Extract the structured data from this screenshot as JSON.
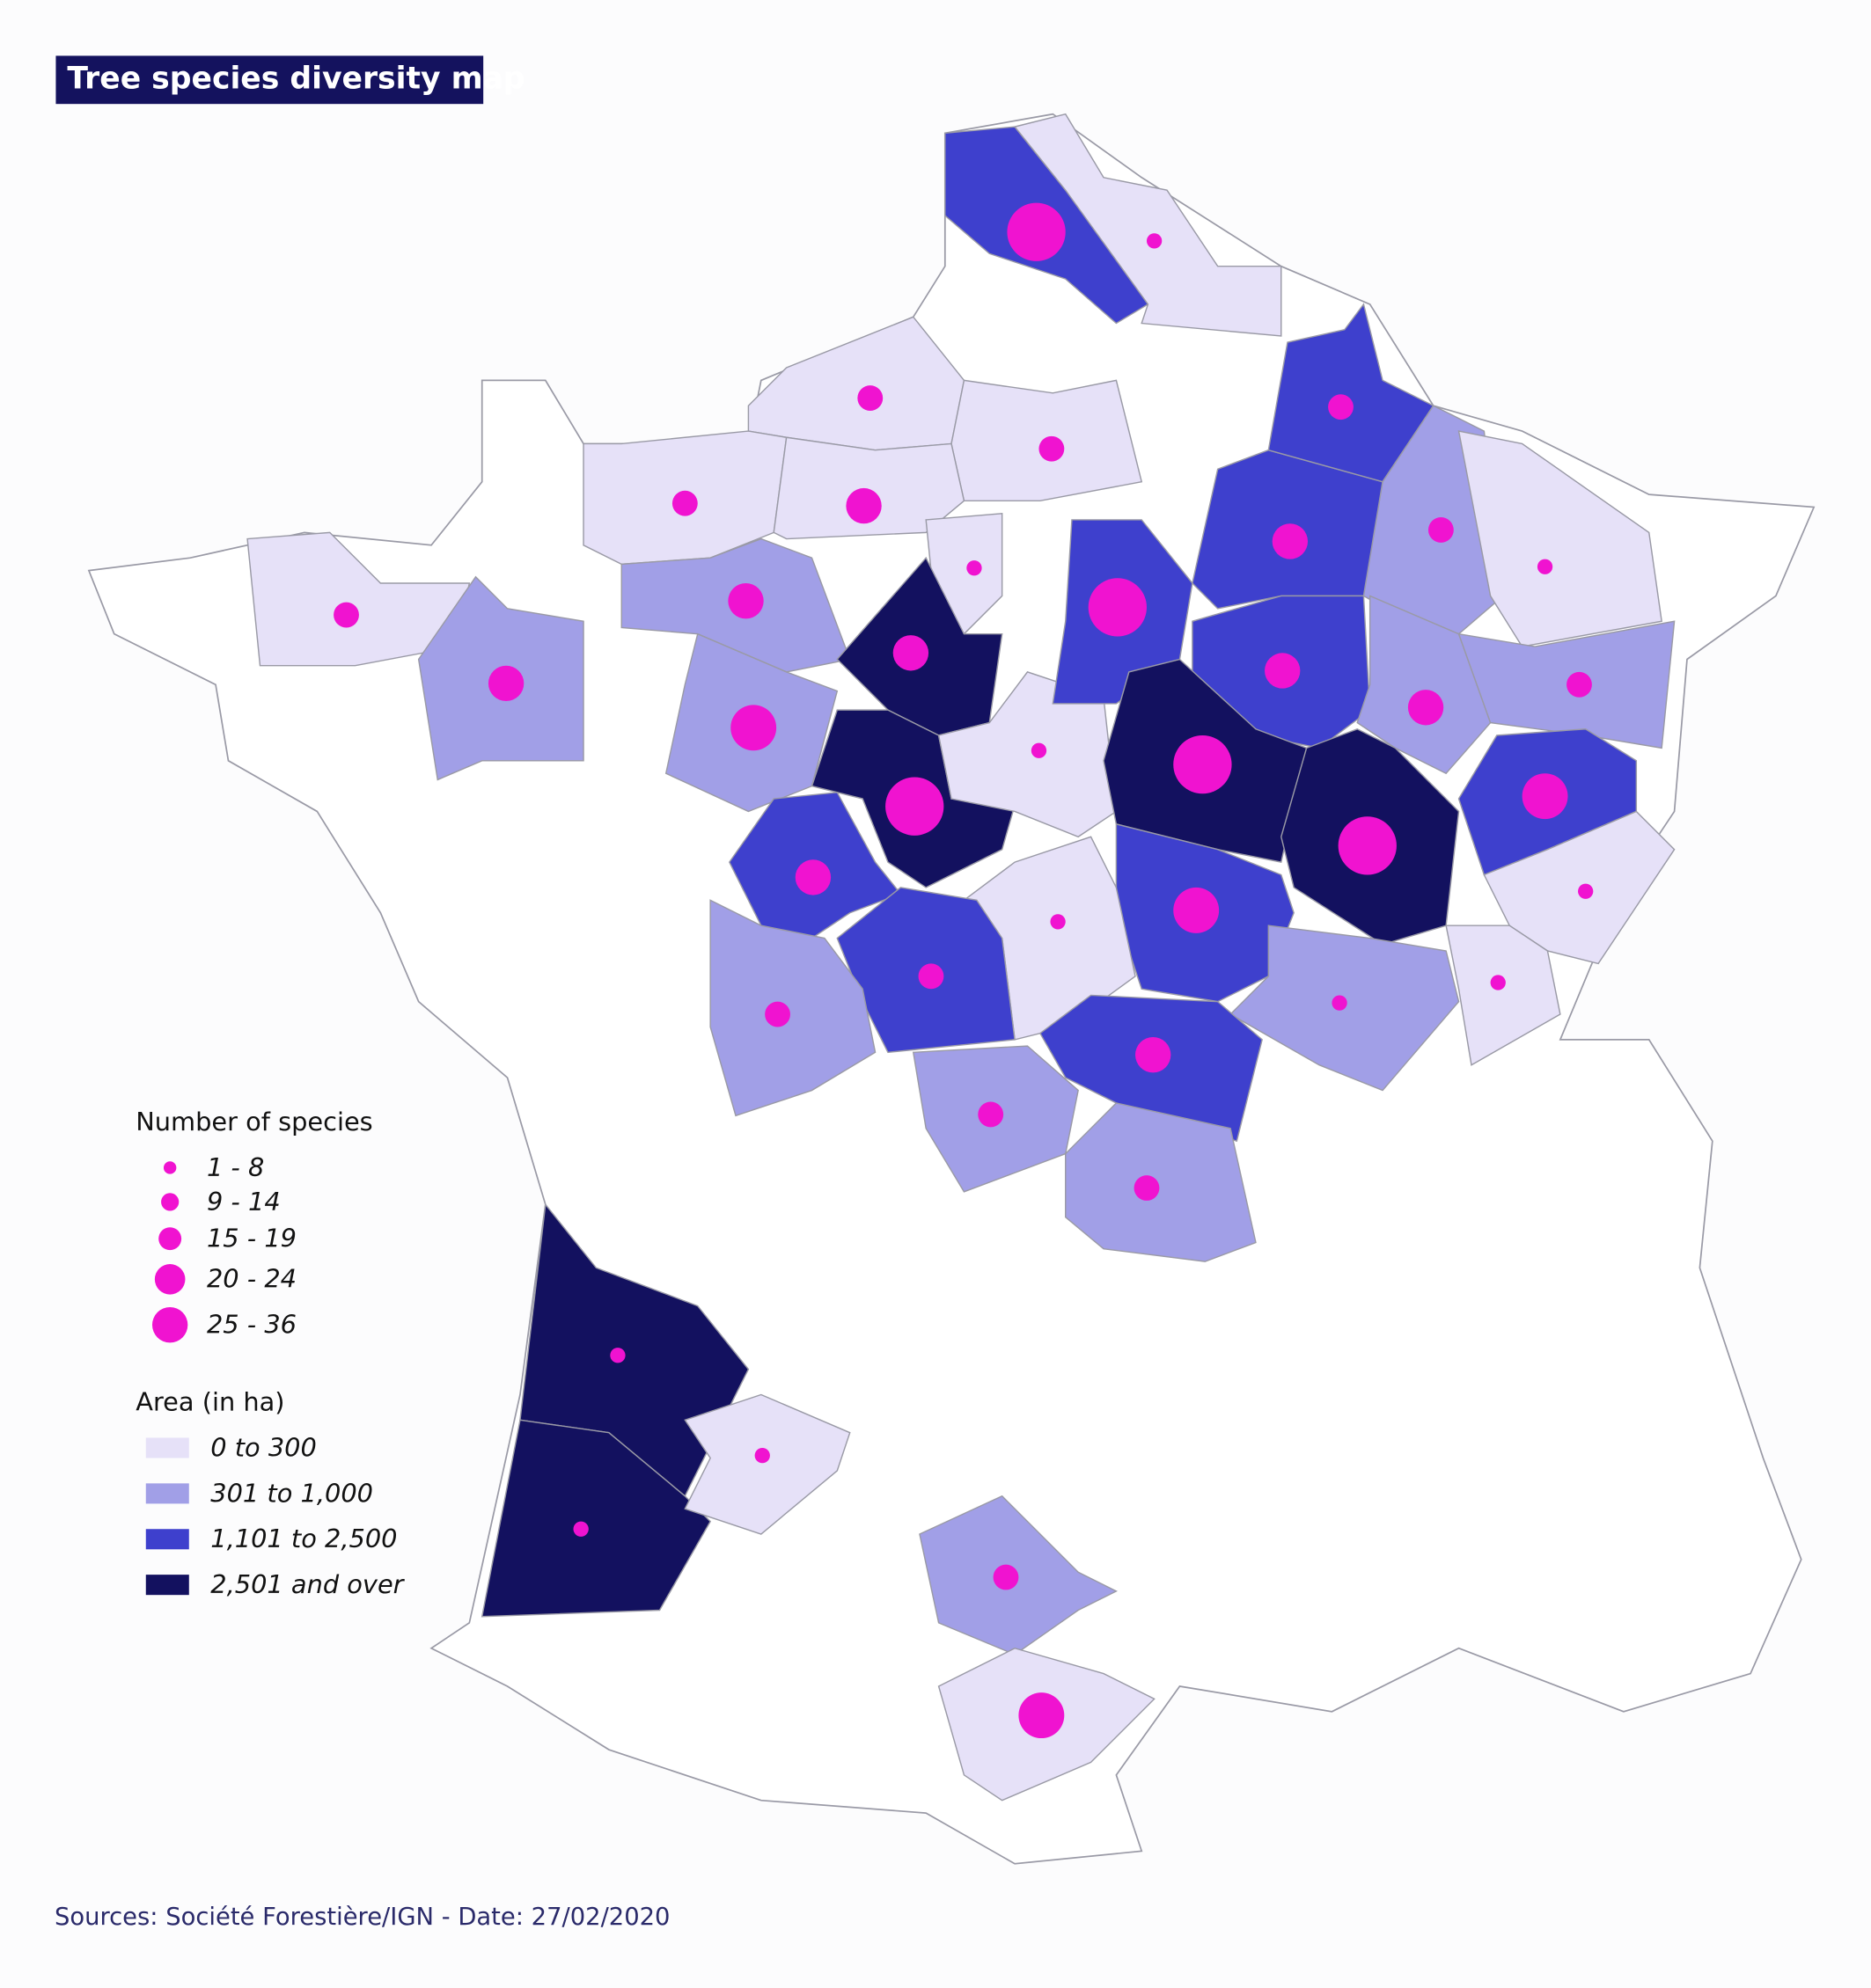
{
  "header": {
    "title": "Tree species diversity map"
  },
  "legend": {
    "species": {
      "title": "Number of species",
      "items": [
        "1 - 8",
        "9 - 14",
        "15 - 19",
        "20 - 24",
        "25 - 36"
      ]
    },
    "area": {
      "title": "Area (in ha)",
      "items": [
        "0 to 300",
        "301 to 1,000",
        "1,101 to 2,500",
        "2,501 and over"
      ]
    }
  },
  "footer": {
    "source": "Sources: Société Forestière/IGN - Date: 27/02/2020"
  }
}
